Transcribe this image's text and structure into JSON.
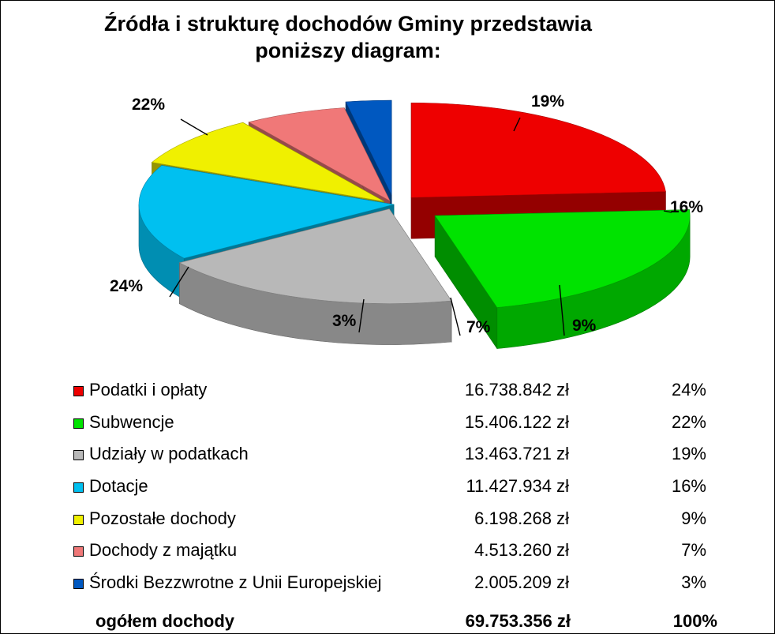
{
  "title": {
    "line1": "Źródła i strukturę dochodów Gminy przedstawia",
    "line2": "poniższy diagram:"
  },
  "chart_data": {
    "type": "pie",
    "title": "Źródła i strukturę dochodów Gminy przedstawia poniższy diagram:",
    "categories": [
      "Podatki i opłaty",
      "Subwencje",
      "Udziały w podatkach",
      "Dotacje",
      "Pozostałe dochody",
      "Dochody z majątku",
      "Środki Bezzwrotne z Unii Europejskiej"
    ],
    "values": [
      16738842,
      15406122,
      13463721,
      11427934,
      6198268,
      4513260,
      2005209
    ],
    "amount_labels": [
      "16.738.842 zł",
      "15.406.122 zł",
      "13.463.721 zł",
      "11.427.934 zł",
      "6.198.268 zł",
      "4.513.260 zł",
      "2.005.209 zł"
    ],
    "percent_labels": [
      "24%",
      "22%",
      "19%",
      "16%",
      "9%",
      "7%",
      "3%"
    ],
    "colors": [
      "#ee0000",
      "#00e300",
      "#b8b8b8",
      "#00c0f0",
      "#f0f000",
      "#f07878",
      "#0058c0"
    ],
    "total": {
      "label": "ogółem dochody",
      "amount": "69.753.356 zł",
      "percent": "100%"
    },
    "legend_position": "bottom"
  }
}
